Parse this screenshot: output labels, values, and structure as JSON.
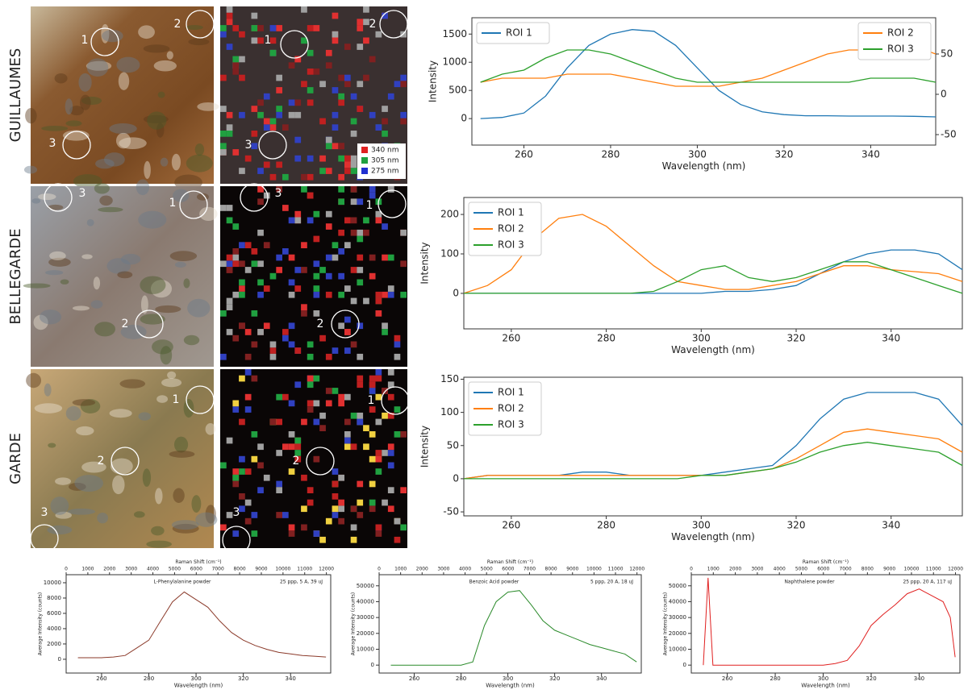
{
  "panels": [
    {
      "row_label": "GUILLAUMES",
      "photo_rois": [
        "1",
        "2",
        "3"
      ],
      "map_rois": [
        "1",
        "2",
        "3"
      ],
      "map_legend": [
        {
          "label": "340 nm",
          "color": "#e02020"
        },
        {
          "label": "305 nm",
          "color": "#20a040"
        },
        {
          "label": "275 nm",
          "color": "#2030d0"
        }
      ]
    },
    {
      "row_label": "BELLEGARDE",
      "photo_rois": [
        "3",
        "1",
        "2"
      ],
      "map_rois": [
        "3",
        "1",
        "2"
      ]
    },
    {
      "row_label": "GARDE",
      "photo_rois": [
        "1",
        "2",
        "3"
      ],
      "map_rois": [
        "1",
        "2",
        "3"
      ]
    }
  ],
  "chart_data": [
    {
      "type": "line",
      "xlabel": "Wavelength (nm)",
      "ylabel": "Intensity",
      "xlim": [
        248,
        355
      ],
      "xticks": [
        260,
        280,
        300,
        320,
        340
      ],
      "ylim": [
        -470,
        1790
      ],
      "yticks": [
        0,
        500,
        1000,
        1500
      ],
      "y2lim": [
        -63,
        95
      ],
      "y2ticks": [
        -50,
        0,
        50
      ],
      "legend": "upper left",
      "legend_y2": "upper right",
      "x": [
        250,
        255,
        260,
        265,
        270,
        275,
        280,
        285,
        290,
        295,
        300,
        305,
        310,
        315,
        320,
        325,
        330,
        335,
        340,
        345,
        350,
        355
      ],
      "series": [
        {
          "name": "ROI 1",
          "color": "#1f77b4",
          "values": [
            0,
            20,
            100,
            400,
            900,
            1300,
            1500,
            1580,
            1550,
            1300,
            900,
            500,
            250,
            120,
            70,
            50,
            50,
            45,
            45,
            45,
            40,
            30
          ]
        },
        {
          "name": "ROI 2",
          "color": "#ff7f0e",
          "axis": "y2",
          "values": [
            15,
            20,
            20,
            20,
            25,
            25,
            25,
            20,
            15,
            10,
            10,
            10,
            15,
            20,
            30,
            40,
            50,
            55,
            55,
            55,
            60,
            50
          ]
        },
        {
          "name": "ROI 3",
          "color": "#2ca02c",
          "axis": "y2",
          "values": [
            15,
            25,
            30,
            45,
            55,
            55,
            50,
            40,
            30,
            20,
            15,
            15,
            15,
            15,
            15,
            15,
            15,
            15,
            20,
            20,
            20,
            15
          ]
        }
      ]
    },
    {
      "type": "line",
      "xlabel": "Wavelength (nm)",
      "ylabel": "Intensity",
      "xlim": [
        250,
        355
      ],
      "xticks": [
        260,
        280,
        300,
        320,
        340
      ],
      "ylim": [
        -90,
        243
      ],
      "yticks": [
        0,
        100,
        200
      ],
      "legend": "upper left",
      "x": [
        250,
        255,
        260,
        265,
        270,
        275,
        280,
        285,
        290,
        295,
        300,
        305,
        310,
        315,
        320,
        325,
        330,
        335,
        340,
        345,
        350,
        355
      ],
      "series": [
        {
          "name": "ROI 1",
          "color": "#1f77b4",
          "values": [
            0,
            0,
            0,
            0,
            0,
            0,
            0,
            0,
            0,
            0,
            0,
            5,
            5,
            10,
            20,
            50,
            80,
            100,
            110,
            110,
            100,
            60
          ]
        },
        {
          "name": "ROI 2",
          "color": "#ff7f0e",
          "values": [
            0,
            20,
            60,
            140,
            190,
            200,
            170,
            120,
            70,
            30,
            20,
            10,
            10,
            20,
            30,
            50,
            70,
            70,
            60,
            55,
            50,
            30
          ]
        },
        {
          "name": "ROI 3",
          "color": "#2ca02c",
          "values": [
            0,
            0,
            0,
            0,
            0,
            0,
            0,
            0,
            5,
            30,
            60,
            70,
            40,
            30,
            40,
            60,
            80,
            80,
            60,
            40,
            20,
            0
          ]
        }
      ]
    },
    {
      "type": "line",
      "xlabel": "Wavelength (nm)",
      "ylabel": "Intensity",
      "xlim": [
        250,
        355
      ],
      "xticks": [
        260,
        280,
        300,
        320,
        340
      ],
      "ylim": [
        -56,
        153
      ],
      "yticks": [
        -50,
        0,
        50,
        100,
        150
      ],
      "legend": "upper left",
      "x": [
        250,
        255,
        260,
        265,
        270,
        275,
        280,
        285,
        290,
        295,
        300,
        305,
        310,
        315,
        320,
        325,
        330,
        335,
        340,
        345,
        350,
        355
      ],
      "series": [
        {
          "name": "ROI 1",
          "color": "#1f77b4",
          "values": [
            0,
            5,
            5,
            5,
            5,
            10,
            10,
            5,
            5,
            5,
            5,
            10,
            15,
            20,
            50,
            90,
            120,
            130,
            130,
            130,
            120,
            80
          ]
        },
        {
          "name": "ROI 2",
          "color": "#ff7f0e",
          "values": [
            0,
            5,
            5,
            5,
            5,
            5,
            5,
            5,
            5,
            5,
            5,
            5,
            10,
            15,
            30,
            50,
            70,
            75,
            70,
            65,
            60,
            40
          ]
        },
        {
          "name": "ROI 3",
          "color": "#2ca02c",
          "values": [
            0,
            0,
            0,
            0,
            0,
            0,
            0,
            0,
            0,
            0,
            5,
            5,
            10,
            15,
            25,
            40,
            50,
            55,
            50,
            45,
            40,
            20
          ]
        }
      ]
    },
    {
      "type": "line",
      "title": "L-Phenylalanine powder",
      "annotation": "25 ppp, 5 A, 39 uJ",
      "xlabel": "Wavelength (nm)",
      "x2label": "Raman Shift (cm⁻¹)",
      "ylabel": "Average Intensity (counts)",
      "xlim": [
        245,
        357
      ],
      "xticks": [
        260,
        280,
        300,
        320,
        340
      ],
      "x2lim": [
        0,
        12200
      ],
      "x2ticks": [
        0,
        1000,
        2000,
        3000,
        4000,
        5000,
        6000,
        7000,
        8000,
        9000,
        10000,
        11000,
        12000
      ],
      "ylim": [
        -1800,
        11050
      ],
      "yticks": [
        0,
        2000,
        4000,
        6000,
        8000,
        10000
      ],
      "color": "#8b3a2a",
      "x": [
        250,
        255,
        260,
        265,
        270,
        275,
        280,
        285,
        290,
        295,
        300,
        305,
        310,
        315,
        320,
        325,
        330,
        335,
        340,
        345,
        350,
        355
      ],
      "values": [
        200,
        200,
        200,
        300,
        500,
        1500,
        2500,
        5000,
        7500,
        8800,
        7800,
        6800,
        5000,
        3500,
        2500,
        1800,
        1300,
        900,
        700,
        500,
        400,
        300
      ]
    },
    {
      "type": "line",
      "title": "Benzoic Acid powder",
      "annotation": "5 ppp, 20 A, 18 uJ",
      "xlabel": "Wavelength (nm)",
      "x2label": "Raman Shift (cm⁻¹)",
      "ylabel": "Average Intensity (counts)",
      "xlim": [
        245,
        357
      ],
      "xticks": [
        260,
        280,
        300,
        320,
        340
      ],
      "x2lim": [
        0,
        12200
      ],
      "x2ticks": [
        0,
        1000,
        2000,
        3000,
        4000,
        5000,
        6000,
        7000,
        8000,
        9000,
        10000,
        11000,
        12000
      ],
      "ylim": [
        -5000,
        57000
      ],
      "yticks": [
        0,
        10000,
        20000,
        30000,
        40000,
        50000
      ],
      "color": "#2a8a2a",
      "x": [
        250,
        255,
        260,
        265,
        270,
        275,
        280,
        285,
        290,
        295,
        300,
        305,
        310,
        315,
        320,
        325,
        330,
        335,
        340,
        345,
        350,
        355
      ],
      "values": [
        0,
        0,
        0,
        0,
        0,
        0,
        0,
        2000,
        25000,
        40000,
        46000,
        47000,
        38000,
        28000,
        22000,
        19000,
        16000,
        13000,
        11000,
        9000,
        7000,
        2000
      ]
    },
    {
      "type": "line",
      "title": "Naphthalene powder",
      "annotation": "25 ppp, 20 A, 117 uJ",
      "xlabel": "Wavelength (nm)",
      "x2label": "Raman Shift (cm⁻¹)",
      "ylabel": "Average Intensity (counts)",
      "xlim": [
        245,
        357
      ],
      "xticks": [
        260,
        280,
        300,
        320,
        340
      ],
      "x2lim": [
        0,
        12200
      ],
      "x2ticks": [
        0,
        1000,
        2000,
        3000,
        4000,
        5000,
        6000,
        7000,
        8000,
        9000,
        10000,
        11000,
        12000
      ],
      "ylim": [
        -5000,
        57000
      ],
      "yticks": [
        0,
        10000,
        20000,
        30000,
        40000,
        50000
      ],
      "color": "#e02020",
      "x": [
        250,
        252,
        254,
        260,
        270,
        280,
        290,
        300,
        305,
        310,
        315,
        320,
        325,
        330,
        335,
        340,
        345,
        350,
        353,
        355
      ],
      "values": [
        0,
        55000,
        0,
        0,
        0,
        0,
        0,
        0,
        1000,
        3000,
        12000,
        25000,
        32000,
        38000,
        45000,
        48000,
        44000,
        40000,
        30000,
        5000
      ]
    }
  ]
}
